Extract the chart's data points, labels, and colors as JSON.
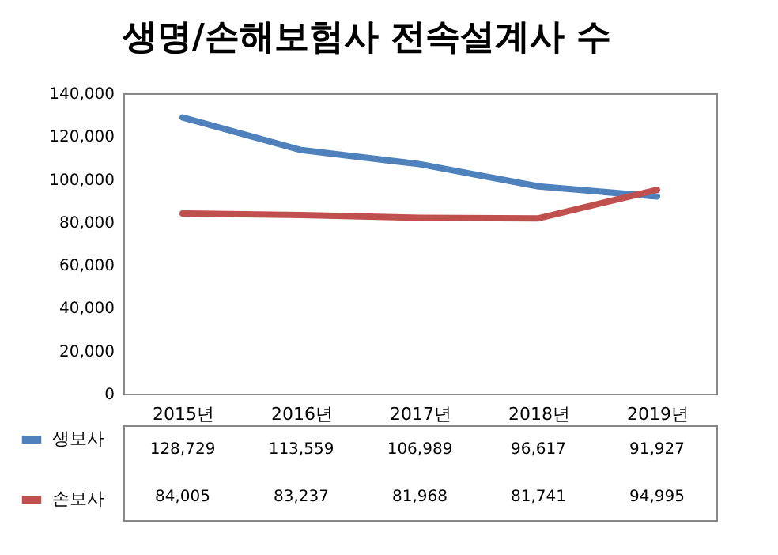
{
  "chart_data": {
    "type": "line",
    "title": "생명/손해보험사 전속설계사 수",
    "categories": [
      "2015년",
      "2016년",
      "2017년",
      "2018년",
      "2019년"
    ],
    "series": [
      {
        "name": "생보사",
        "color": "#4f81bd",
        "values": [
          128729,
          113559,
          106989,
          96617,
          91927
        ],
        "value_labels": [
          "128,729",
          "113,559",
          "106,989",
          "96,617",
          "91,927"
        ]
      },
      {
        "name": "손보사",
        "color": "#c0504d",
        "values": [
          84005,
          83237,
          81968,
          81741,
          94995
        ],
        "value_labels": [
          "84,005",
          "83,237",
          "81,968",
          "81,741",
          "94,995"
        ]
      }
    ],
    "ylim": [
      0,
      140000
    ],
    "yticks": [
      {
        "value": 0,
        "label": "0"
      },
      {
        "value": 20000,
        "label": "20,000"
      },
      {
        "value": 40000,
        "label": "40,000"
      },
      {
        "value": 60000,
        "label": "60,000"
      },
      {
        "value": 80000,
        "label": "80,000"
      },
      {
        "value": 100000,
        "label": "100,000"
      },
      {
        "value": 120000,
        "label": "120,000"
      },
      {
        "value": 140000,
        "label": "140,000"
      }
    ],
    "legend": "bottom",
    "grid": false
  }
}
